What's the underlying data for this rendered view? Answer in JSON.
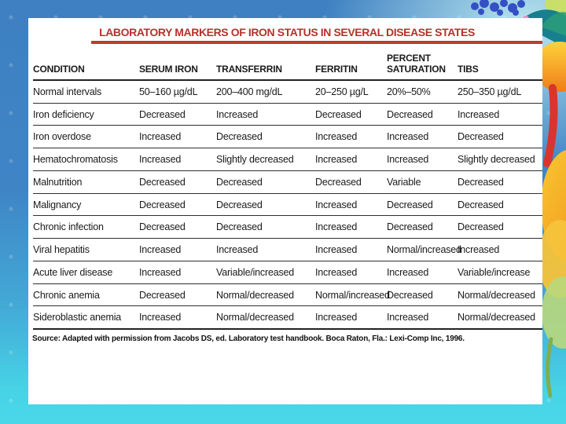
{
  "slide": {
    "title": "LABORATORY MARKERS OF IRON STATUS IN SEVERAL DISEASE STATES",
    "source_note": "Source: Adapted with permission from Jacobs DS, ed. Laboratory test handbook. Boca Raton, Fla.: Lexi-Comp Inc, 1996."
  },
  "table": {
    "headers": [
      "CONDITION",
      "SERUM IRON",
      "TRANSFERRIN",
      "FERRITIN",
      "PERCENT SATURATION",
      "TIBS"
    ],
    "rows": [
      [
        "Normal intervals",
        "50–160 µg/dL",
        "200–400 mg/dL",
        "20–250 µg/L",
        "20%–50%",
        "250–350 µg/dL"
      ],
      [
        "Iron deficiency",
        "Decreased",
        "Increased",
        "Decreased",
        "Decreased",
        "Increased"
      ],
      [
        "Iron overdose",
        "Increased",
        "Decreased",
        "Increased",
        "Increased",
        "Decreased"
      ],
      [
        "Hematochromatosis",
        "Increased",
        "Slightly decreased",
        "Increased",
        "Increased",
        "Slightly decreased"
      ],
      [
        "Malnutrition",
        "Decreased",
        "Decreased",
        "Decreased",
        "Variable",
        "Decreased"
      ],
      [
        "Malignancy",
        "Decreased",
        "Decreased",
        "Increased",
        "Decreased",
        "Decreased"
      ],
      [
        "Chronic infection",
        "Decreased",
        "Decreased",
        "Increased",
        "Decreased",
        "Decreased"
      ],
      [
        "Viral hepatitis",
        "Increased",
        "Increased",
        "Increased",
        "Normal/increased",
        "Increased"
      ],
      [
        "Acute liver disease",
        "Increased",
        "Variable/increased",
        "Increased",
        "Increased",
        "Variable/increase"
      ],
      [
        "Chronic anemia",
        "Decreased",
        "Normal/decreased",
        "Normal/increased",
        "Decreased",
        "Normal/decreased"
      ],
      [
        "Sideroblastic anemia",
        "Increased",
        "Normal/decreased",
        "Increased",
        "Increased",
        "Normal/decreased"
      ]
    ]
  },
  "colors": {
    "title_red": "#b5322a",
    "rule_red": "#c23a2c",
    "background_blue": "#3e80c2",
    "background_cyan": "#49d5e6",
    "background_cyan_light": "#b9e6ee",
    "panel_white": "#ffffff"
  }
}
